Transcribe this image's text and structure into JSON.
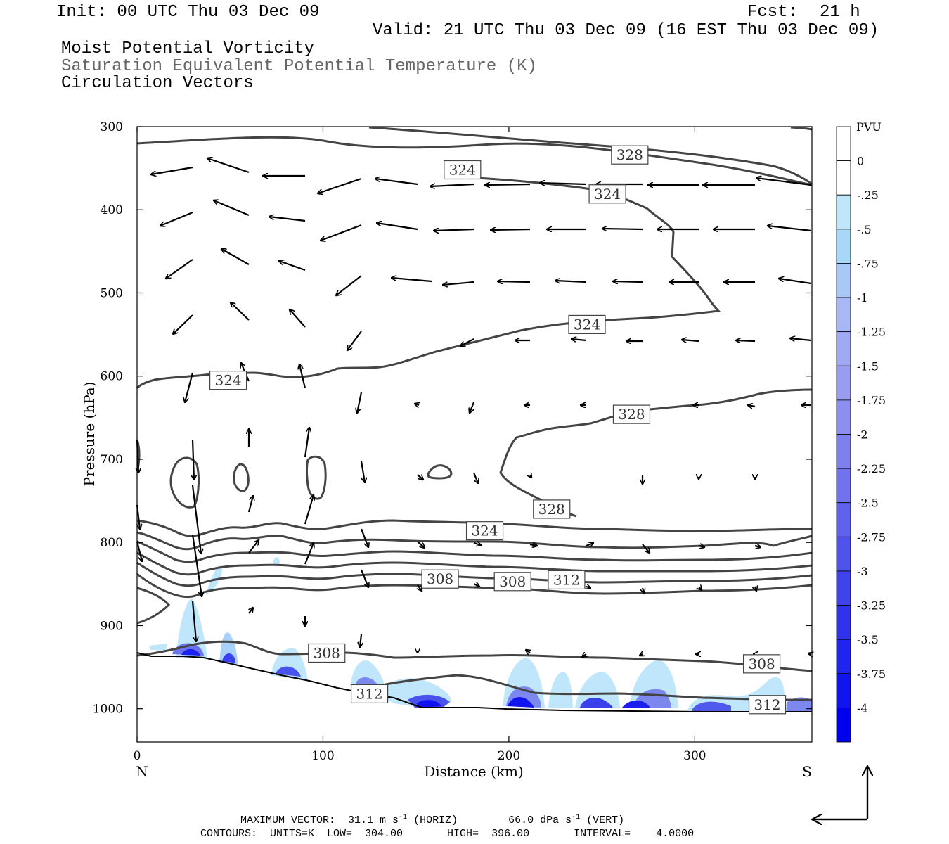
{
  "header": {
    "init": "Init: 00 UTC Thu 03 Dec 09",
    "fcst_label": "Fcst:",
    "fcst_value": "21 h",
    "valid": "Valid: 21 UTC Thu 03 Dec 09 (16 EST Thu 03 Dec 09)",
    "field1": "Moist Potential Vorticity",
    "field2": "Saturation Equivalent Potential Temperature (K)",
    "field3": "Circulation Vectors"
  },
  "chart_data": {
    "type": "cross-section contour",
    "xlabel": "Distance (km)",
    "ylabel": "Pressure (hPa)",
    "xlim": [
      0,
      363
    ],
    "ylim": [
      1040,
      300
    ],
    "x_ticks": [
      0,
      100,
      200,
      300
    ],
    "y_ticks": [
      300,
      400,
      500,
      600,
      700,
      800,
      900,
      1000
    ],
    "x_end_labels": {
      "left": "N",
      "right": "S"
    },
    "colorbar": {
      "unit": "PVU",
      "labels": [
        "0",
        "-.25",
        "-.5",
        "-.75",
        "-1",
        "-1.25",
        "-1.5",
        "-1.75",
        "-2",
        "-2.25",
        "-2.5",
        "-2.75",
        "-3",
        "-3.25",
        "-3.5",
        "-3.75",
        "-4"
      ],
      "colors": [
        "#ffffff",
        "#ffffff",
        "#bfe6fa",
        "#a8d8f8",
        "#a9c8f6",
        "#a8b8f4",
        "#a0aaf2",
        "#9a9cf0",
        "#8c8ef0",
        "#7e80ee",
        "#7072ee",
        "#6062ee",
        "#5052ee",
        "#4042ee",
        "#3032ee",
        "#2024ee",
        "#1014ee",
        "#0000ee"
      ]
    },
    "contour_labels": [
      {
        "text": "328",
        "x": 265,
        "p": 334
      },
      {
        "text": "324",
        "x": 175,
        "p": 352
      },
      {
        "text": "324",
        "x": 253,
        "p": 381
      },
      {
        "text": "324",
        "x": 242,
        "p": 538
      },
      {
        "text": "324",
        "x": 49,
        "p": 605
      },
      {
        "text": "328",
        "x": 266,
        "p": 646
      },
      {
        "text": "328",
        "x": 223,
        "p": 760
      },
      {
        "text": "324",
        "x": 187,
        "p": 786
      },
      {
        "text": "308",
        "x": 163,
        "p": 844
      },
      {
        "text": "308",
        "x": 202,
        "p": 847
      },
      {
        "text": "312",
        "x": 231,
        "p": 845
      },
      {
        "text": "308",
        "x": 102,
        "p": 933
      },
      {
        "text": "308",
        "x": 336,
        "p": 946
      },
      {
        "text": "312",
        "x": 125,
        "p": 982
      },
      {
        "text": "312",
        "x": 339,
        "p": 995
      }
    ],
    "max_vector_text": "MAXIMUM VECTOR:  31.1 m s",
    "max_vector_exp": "-1",
    "max_vector_horiz": " (HORIZ)",
    "max_vector_vert": "66.0 dPa s",
    "max_vector_vert_exp": "-1",
    "max_vector_vert_tail": " (VERT)",
    "contours_info": "CONTOURS:  UNITS=K  LOW=  304.00       HIGH=  396.00       INTERVAL=    4.0000"
  }
}
